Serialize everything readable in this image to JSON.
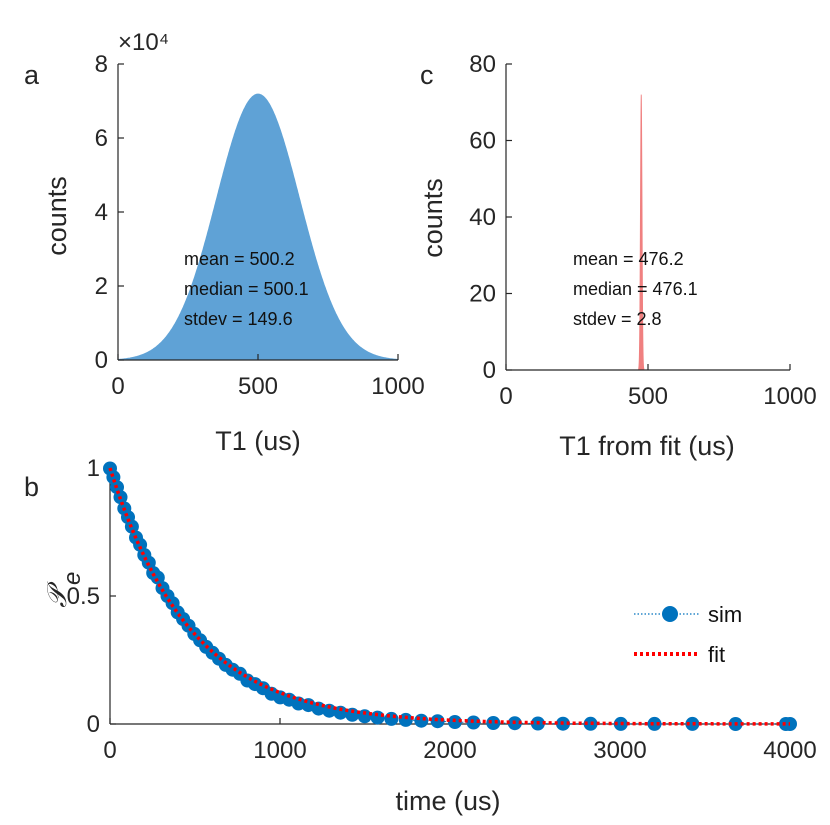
{
  "chart_data": [
    {
      "id": "a",
      "type": "histogram",
      "panel_label": "a",
      "xlabel": "T1 (us)",
      "ylabel": "counts",
      "xlim": [
        0,
        1000
      ],
      "ylim": [
        0,
        80000
      ],
      "x_ticks": [
        0,
        500,
        1000
      ],
      "y_tick_labels": [
        "0",
        "2",
        "4",
        "6",
        "8"
      ],
      "y_tick_values": [
        0,
        20000,
        40000,
        60000,
        80000
      ],
      "y_multiplier": "×10⁴",
      "color": "#5fa2d6",
      "distribution": {
        "kind": "normal",
        "mean": 500.2,
        "median": 500.1,
        "stdev": 149.6,
        "peak_count": 72000,
        "range": [
          0,
          1000
        ]
      },
      "annotations": [
        "mean = 500.2",
        "median = 500.1",
        "stdev = 149.6"
      ]
    },
    {
      "id": "c",
      "type": "histogram",
      "panel_label": "c",
      "xlabel": "T1 from fit (us)",
      "ylabel": "counts",
      "xlim": [
        0,
        1000
      ],
      "ylim": [
        0,
        80
      ],
      "x_ticks": [
        0,
        500,
        1000
      ],
      "y_ticks": [
        0,
        20,
        40,
        60,
        80
      ],
      "color": "#f08080",
      "distribution": {
        "kind": "normal",
        "mean": 476.2,
        "median": 476.1,
        "stdev": 2.8,
        "peak_count": 72
      },
      "annotations": [
        "mean = 476.2",
        "median = 476.1",
        "stdev = 2.8"
      ]
    },
    {
      "id": "b",
      "type": "line",
      "panel_label": "b",
      "xlabel": "time (us)",
      "ylabel": "𝒫",
      "ylabel_sub": "e",
      "xlim": [
        0,
        4000
      ],
      "ylim": [
        0,
        1
      ],
      "x_ticks": [
        0,
        1000,
        2000,
        3000,
        4000
      ],
      "y_ticks": [
        0,
        0.5,
        1
      ],
      "y_tick_labels": [
        "0",
        "0.5",
        "1"
      ],
      "series": [
        {
          "name": "sim",
          "style": "markers-dotted",
          "color": "#0072bd",
          "x": [
            0,
            20,
            41,
            62,
            84,
            106,
            129,
            153,
            177,
            202,
            228,
            254,
            281,
            309,
            338,
            368,
            398,
            430,
            462,
            496,
            530,
            566,
            603,
            641,
            681,
            721,
            764,
            808,
            853,
            900,
            950,
            1001,
            1054,
            1109,
            1167,
            1227,
            1290,
            1356,
            1425,
            1498,
            1574,
            1655,
            1740,
            1831,
            1927,
            2029,
            2138,
            2255,
            2381,
            2517,
            2665,
            2827,
            3005,
            3203,
            3426,
            3680,
            3976,
            4000
          ],
          "y": [
            0.998,
            0.964,
            0.925,
            0.886,
            0.842,
            0.808,
            0.771,
            0.728,
            0.7,
            0.66,
            0.63,
            0.59,
            0.572,
            0.531,
            0.5,
            0.472,
            0.436,
            0.41,
            0.384,
            0.352,
            0.327,
            0.301,
            0.278,
            0.255,
            0.231,
            0.212,
            0.196,
            0.17,
            0.156,
            0.14,
            0.118,
            0.104,
            0.095,
            0.08,
            0.074,
            0.06,
            0.052,
            0.044,
            0.036,
            0.03,
            0.025,
            0.02,
            0.016,
            0.013,
            0.011,
            0.008,
            0.006,
            0.004,
            0.003,
            0.002,
            0.001,
            0.0008,
            0.0005,
            0.0003,
            0.0002,
            0.0001,
            0.0,
            0.0
          ]
        },
        {
          "name": "fit",
          "style": "dotted-line",
          "color": "#ff0000",
          "model": "exp(-t/T1)",
          "T1": 476.2
        }
      ],
      "legend_position": "right"
    }
  ]
}
